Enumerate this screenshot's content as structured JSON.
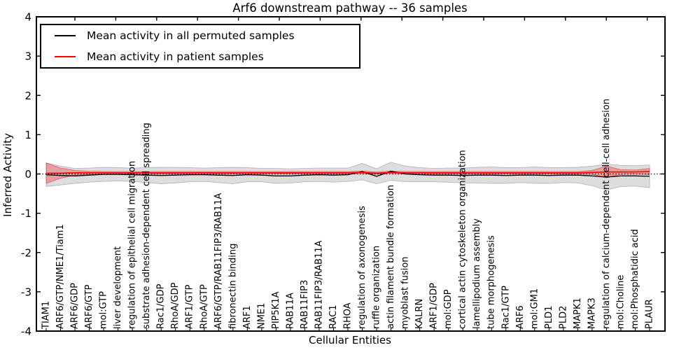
{
  "figure": {
    "title": "Arf6 downstream pathway -- 36 samples",
    "xlabel": "Cellular Entities",
    "ylabel": "Inferred Activity"
  },
  "legend": {
    "items": [
      {
        "label": "Mean activity in all permuted samples",
        "color": "#000000"
      },
      {
        "label": "Mean activity in patient samples",
        "color": "#ff0000"
      }
    ]
  },
  "chart_data": {
    "type": "line",
    "title": "Arf6 downstream pathway -- 36 samples",
    "xlabel": "Cellular Entities",
    "ylabel": "Inferred Activity",
    "ylim": [
      -4,
      4
    ],
    "yticks": [
      4,
      3,
      2,
      1,
      0,
      -1,
      -2,
      -3,
      -4
    ],
    "grid": false,
    "legend_position": "upper left",
    "zero_line": {
      "y": 0,
      "style": "dotted",
      "color": "#000000"
    },
    "categories": [
      "TIAM1",
      "ARF6/GTP/NME1/Tiam1",
      "ARF6/GDP",
      "ARF6/GTP",
      "mol:GTP",
      "liver development",
      "regulation of epithelial cell migration",
      "substrate adhesion-dependent cell spreading",
      "Rac1/GDP",
      "RhoA/GDP",
      "ARF1/GTP",
      "RhoA/GTP",
      "ARF6/GTP/RAB11FIP3/RAB11A",
      "fibronectin binding",
      "ARF1",
      "NME1",
      "PIP5K1A",
      "RAB11A",
      "RAB11FIP3",
      "RAB11FIP3/RAB11A",
      "RAC1",
      "RHOA",
      "regulation of axonogenesis",
      "ruffle organization",
      "actin filament bundle formation",
      "myoblast fusion",
      "KALRN",
      "ARF1/GDP",
      "mol:GDP",
      "cortical actin cytoskeleton organization",
      "lamellipodium assembly",
      "tube morphogenesis",
      "Rac1/GTP",
      "ARF6",
      "mol:GM1",
      "PLD1",
      "PLD2",
      "MAPK1",
      "MAPK3",
      "regulation of calcium-dependent cell-cell adhesion",
      "mol:Choline",
      "mol:Phosphatidic acid",
      "PLAUR"
    ],
    "series": [
      {
        "name": "Mean activity in all permuted samples",
        "color": "#000000",
        "line_width": 1.3,
        "values": [
          -0.02,
          -0.04,
          -0.05,
          -0.03,
          -0.01,
          -0.01,
          -0.02,
          -0.03,
          -0.04,
          -0.03,
          -0.02,
          -0.02,
          -0.03,
          -0.04,
          -0.02,
          -0.03,
          -0.05,
          -0.05,
          -0.03,
          -0.02,
          -0.03,
          -0.02,
          0.06,
          -0.06,
          0.07,
          0.0,
          -0.02,
          -0.03,
          -0.03,
          -0.04,
          -0.03,
          -0.03,
          -0.04,
          -0.03,
          -0.03,
          -0.04,
          -0.03,
          -0.03,
          -0.05,
          -0.08,
          -0.05,
          -0.05,
          -0.06
        ],
        "band_halfwidth": [
          0.3,
          0.24,
          0.19,
          0.18,
          0.18,
          0.17,
          0.17,
          0.19,
          0.21,
          0.2,
          0.18,
          0.17,
          0.19,
          0.21,
          0.18,
          0.17,
          0.19,
          0.18,
          0.17,
          0.17,
          0.18,
          0.17,
          0.21,
          0.19,
          0.23,
          0.2,
          0.18,
          0.17,
          0.18,
          0.19,
          0.2,
          0.21,
          0.2,
          0.19,
          0.21,
          0.2,
          0.19,
          0.2,
          0.25,
          0.33,
          0.27,
          0.26,
          0.29
        ],
        "band_fill": "rgba(0,0,0,0.135)",
        "band_edge": "rgba(120,120,120,0.45)"
      },
      {
        "name": "Mean activity in patient samples",
        "color": "#ff0000",
        "line_width": 1.6,
        "values": [
          0.02,
          0.02,
          0.03,
          0.03,
          0.03,
          0.03,
          0.03,
          0.03,
          0.03,
          0.03,
          0.03,
          0.03,
          0.03,
          0.03,
          0.03,
          0.03,
          0.03,
          0.03,
          0.03,
          0.03,
          0.03,
          0.03,
          0.04,
          0.02,
          0.04,
          0.03,
          0.03,
          0.03,
          0.03,
          0.03,
          0.03,
          0.03,
          0.03,
          0.03,
          0.03,
          0.03,
          0.03,
          0.03,
          0.04,
          0.05,
          0.05,
          0.05,
          0.06
        ],
        "band_halfwidth": [
          0.26,
          0.13,
          0.06,
          0.04,
          0.035,
          0.03,
          0.03,
          0.03,
          0.03,
          0.03,
          0.03,
          0.03,
          0.03,
          0.03,
          0.03,
          0.03,
          0.03,
          0.03,
          0.03,
          0.03,
          0.03,
          0.03,
          0.035,
          0.03,
          0.035,
          0.03,
          0.03,
          0.03,
          0.03,
          0.03,
          0.03,
          0.03,
          0.03,
          0.03,
          0.03,
          0.03,
          0.03,
          0.03,
          0.05,
          0.15,
          0.06,
          0.05,
          0.08
        ],
        "band_fill": "rgba(255,0,0,0.28)",
        "band_edge": "rgba(205,45,45,0.55)"
      }
    ]
  }
}
